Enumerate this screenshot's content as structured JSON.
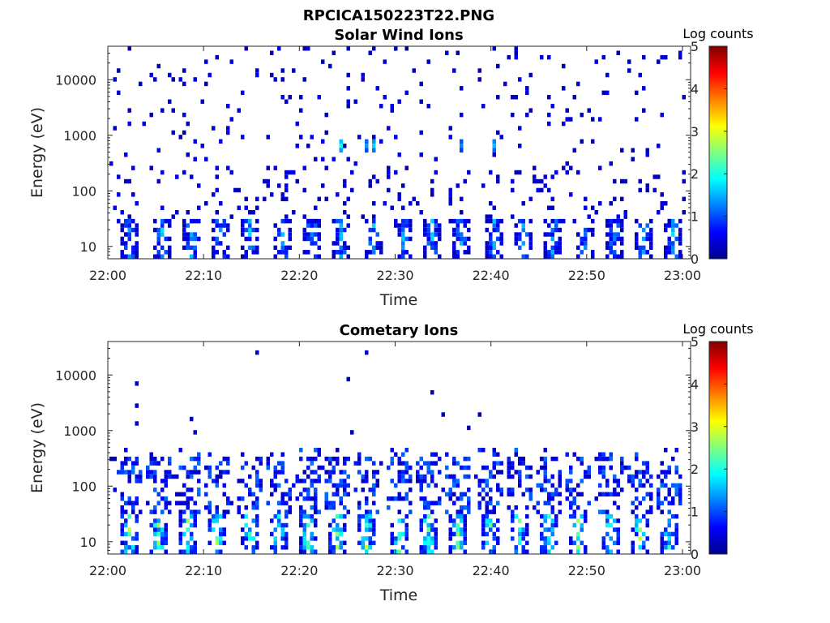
{
  "figure": {
    "title": "RPCICA150223T22.PNG"
  },
  "chart_data": [
    {
      "type": "heatmap",
      "title": "Solar Wind Ions",
      "xlabel": "Time",
      "ylabel": "Energy (eV)",
      "x_ticks": [
        "22:00",
        "22:10",
        "22:20",
        "22:30",
        "22:40",
        "22:50",
        "23:00"
      ],
      "y_ticks": [
        "10",
        "100",
        "1000",
        "10000"
      ],
      "y_scale": "log",
      "ylim": [
        6,
        40000
      ],
      "xlim": [
        "22:00",
        "23:00"
      ],
      "colorbar": {
        "label": "Log counts",
        "ticks": [
          "0",
          "1",
          "2",
          "3",
          "4",
          "5"
        ],
        "range": [
          0,
          5
        ],
        "colormap": "jet"
      },
      "scan_times_min": [
        2.2,
        5.4,
        8.5,
        11.6,
        14.8,
        17.9,
        21.1,
        24.2,
        27.4,
        30.6,
        33.7,
        36.9,
        40.0,
        43.2,
        46.3,
        49.5,
        52.6,
        55.7,
        58.9
      ],
      "low_energy_band_eV": [
        6,
        30
      ],
      "low_energy_peak_log_counts": 1.6,
      "background_range_eV": [
        30,
        40000
      ],
      "background_log_counts": 0.2,
      "features": [
        {
          "time_min": 24.2,
          "energy_eV": 600,
          "log_counts": 2.0
        },
        {
          "time_min": 27.4,
          "energy_eV": 600,
          "log_counts": 1.7
        },
        {
          "time_min": 40.0,
          "energy_eV": 600,
          "log_counts": 1.6
        },
        {
          "time_min": 36.9,
          "energy_eV": 650,
          "log_counts": 1.3
        },
        {
          "time_min": 27.0,
          "energy_eV": 700,
          "log_counts": 1.4
        }
      ]
    },
    {
      "type": "heatmap",
      "title": "Cometary Ions",
      "xlabel": "Time",
      "ylabel": "Energy (eV)",
      "x_ticks": [
        "22:00",
        "22:10",
        "22:20",
        "22:30",
        "22:40",
        "22:50",
        "23:00"
      ],
      "y_ticks": [
        "10",
        "100",
        "1000",
        "10000"
      ],
      "y_scale": "log",
      "ylim": [
        6,
        40000
      ],
      "xlim": [
        "22:00",
        "23:00"
      ],
      "colorbar": {
        "label": "Log counts",
        "ticks": [
          "0",
          "1",
          "2",
          "3",
          "4",
          "5"
        ],
        "range": [
          0,
          5
        ],
        "colormap": "jet"
      },
      "scan_times_min": [
        1.9,
        5.1,
        8.1,
        11.3,
        14.5,
        17.6,
        20.8,
        23.9,
        27.0,
        30.3,
        33.4,
        36.5,
        39.7,
        42.9,
        46.0,
        49.1,
        52.3,
        55.5,
        58.6
      ],
      "low_energy_band_eV": [
        6,
        30
      ],
      "low_energy_peak_log_counts": 2.6,
      "mid_energy_band_eV": [
        30,
        300
      ],
      "mid_energy_log_counts": 0.6,
      "sparse_high_energy_points": [
        {
          "time_min": 2.9,
          "energy_eV": 6800
        },
        {
          "time_min": 2.7,
          "energy_eV": 2800
        },
        {
          "time_min": 2.8,
          "energy_eV": 1400
        },
        {
          "time_min": 8.5,
          "energy_eV": 1700
        },
        {
          "time_min": 9.0,
          "energy_eV": 1000
        },
        {
          "time_min": 15.5,
          "energy_eV": 27000
        },
        {
          "time_min": 24.9,
          "energy_eV": 8800
        },
        {
          "time_min": 26.8,
          "energy_eV": 25000
        },
        {
          "time_min": 33.8,
          "energy_eV": 5300
        },
        {
          "time_min": 35.0,
          "energy_eV": 1800
        },
        {
          "time_min": 37.3,
          "energy_eV": 1200
        },
        {
          "time_min": 38.8,
          "energy_eV": 1800
        },
        {
          "time_min": 25.2,
          "energy_eV": 900
        }
      ]
    }
  ]
}
